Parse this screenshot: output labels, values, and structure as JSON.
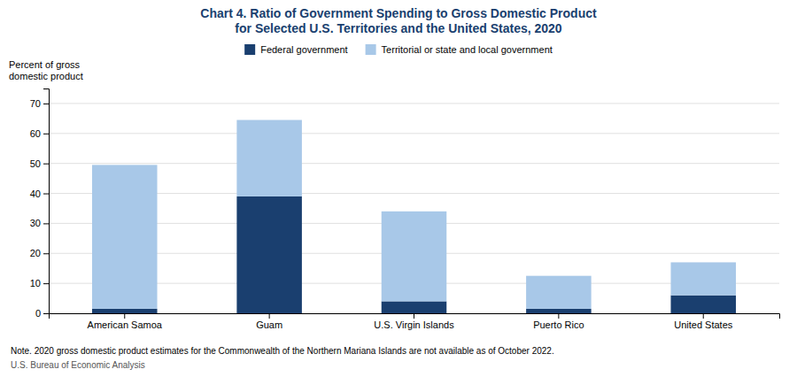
{
  "chart_data": {
    "type": "bar",
    "stacked": true,
    "title": "Chart 4. Ratio of Government Spending to Gross Domestic Product\nfor Selected U.S. Territories and the United States, 2020",
    "y_label": "Percent of gross\ndomestic product",
    "categories": [
      "American Samoa",
      "Guam",
      "U.S. Virgin Islands",
      "Puerto Rico",
      "United States"
    ],
    "series": [
      {
        "name": "Federal government",
        "color": "#1a3f6f",
        "values": [
          1.5,
          39.0,
          4.0,
          1.5,
          6.0
        ]
      },
      {
        "name": "Territorial or state and local government",
        "color": "#a8c8e8",
        "values": [
          48.0,
          25.5,
          30.0,
          11.0,
          11.0
        ]
      }
    ],
    "ylim": [
      0,
      75
    ],
    "yticks": [
      0,
      10,
      20,
      30,
      40,
      50,
      60,
      70
    ],
    "grid": true,
    "legend": "top",
    "annotations": [
      "Note. 2020 gross domestic product estimates for the Commonwealth of the Northern Mariana Islands are not available as of October 2022.",
      "U.S. Bureau of Economic Analysis"
    ]
  }
}
